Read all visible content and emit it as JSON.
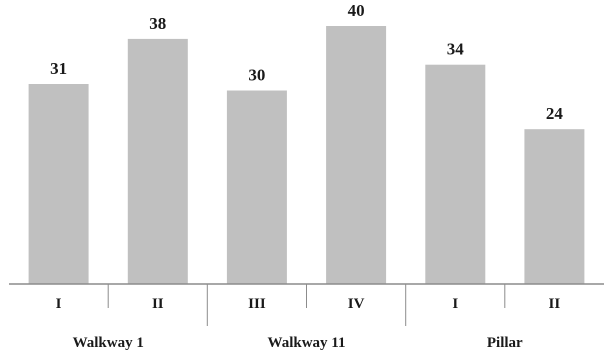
{
  "chart_data": {
    "type": "bar",
    "categories": [
      "I",
      "II",
      "III",
      "IV",
      "I",
      "II"
    ],
    "values": [
      31,
      38,
      30,
      40,
      34,
      24
    ],
    "groups": [
      {
        "label": "Walkway 1",
        "categories": [
          0,
          1
        ]
      },
      {
        "label": "Walkway 11",
        "categories": [
          2,
          3
        ]
      },
      {
        "label": "Pillar",
        "categories": [
          4,
          5
        ]
      }
    ],
    "title": "",
    "xlabel": "",
    "ylabel": "",
    "ylim": [
      0,
      40
    ],
    "grid": false,
    "bar_color": "#c0c0c0",
    "axis_color": "#8c8c8c"
  }
}
